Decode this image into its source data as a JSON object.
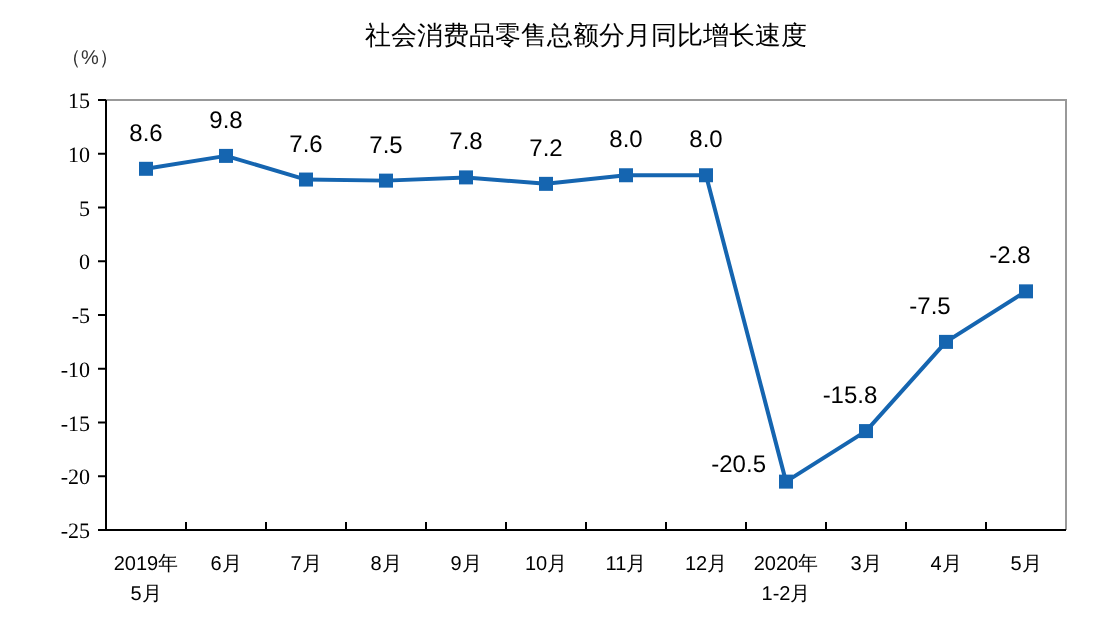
{
  "chart_data": {
    "type": "line",
    "title": "社会消费品零售总额分月同比增长速度",
    "ylabel": "（%）",
    "categories": [
      "2019年\n5月",
      "6月",
      "7月",
      "8月",
      "9月",
      "10月",
      "11月",
      "12月",
      "2020年\n1-2月",
      "3月",
      "4月",
      "5月"
    ],
    "series": [
      {
        "color": "#1565b0",
        "values": [
          8.6,
          9.8,
          7.6,
          7.5,
          7.8,
          7.2,
          8.0,
          8.0,
          -20.5,
          -15.8,
          -7.5,
          -2.8
        ],
        "value_labels": [
          "8.6",
          "9.8",
          "7.6",
          "7.5",
          "7.8",
          "7.2",
          "8.0",
          "8.0",
          "-20.5",
          "-15.8",
          "-7.5",
          "-2.8"
        ]
      }
    ],
    "ylim": [
      -25,
      15
    ],
    "yticks": [
      -25,
      -20,
      -15,
      -10,
      -5,
      0,
      5,
      10,
      15
    ],
    "marker": "square",
    "line_style": "solid",
    "grid": false
  }
}
